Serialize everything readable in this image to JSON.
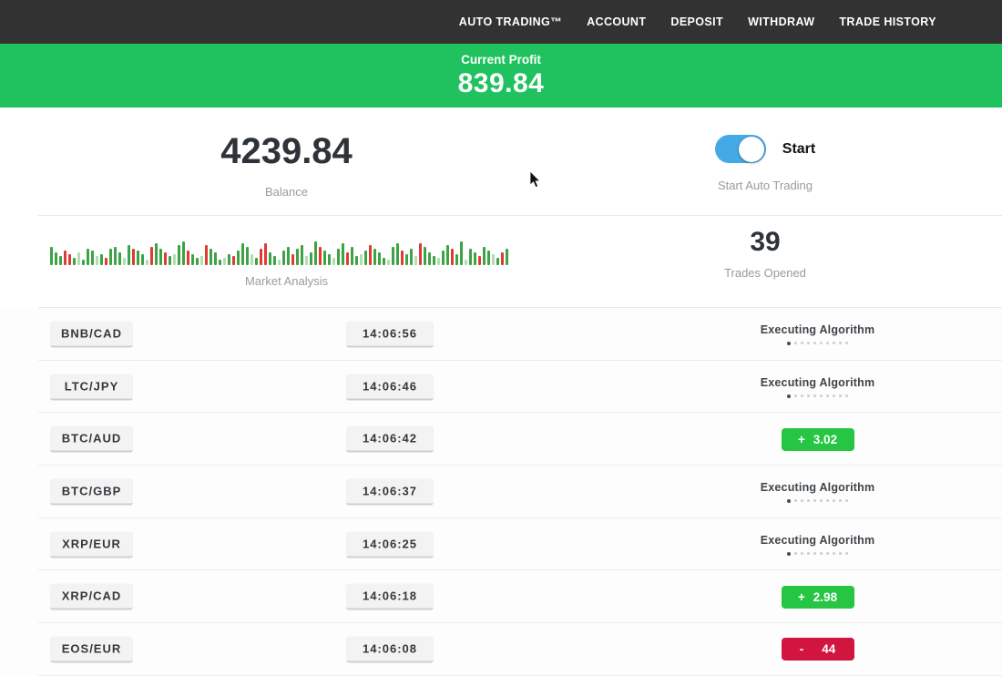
{
  "nav": {
    "items": [
      {
        "label": "AUTO TRADING™"
      },
      {
        "label": "ACCOUNT"
      },
      {
        "label": "DEPOSIT"
      },
      {
        "label": "WITHDRAW"
      },
      {
        "label": "TRADE HISTORY"
      }
    ]
  },
  "banner": {
    "label": "Current Profit",
    "value": "839.84"
  },
  "stats": {
    "balance": {
      "value": "4239.84",
      "label": "Balance"
    },
    "auto_trading": {
      "toggle_state": "on",
      "toggle_label": "Start",
      "label": "Start Auto Trading"
    },
    "market_analysis": {
      "label": "Market Analysis",
      "bars": [
        "g20",
        "g14",
        "g10",
        "r16",
        "r12",
        "g8",
        "G14",
        "g6",
        "g18",
        "g16",
        "G10",
        "g12",
        "r8",
        "g18",
        "g20",
        "g14",
        "G8",
        "g22",
        "r18",
        "g16",
        "g12",
        "G6",
        "r20",
        "g24",
        "g18",
        "r14",
        "g10",
        "G12",
        "g22",
        "g26",
        "r16",
        "g12",
        "g8",
        "G10",
        "r22",
        "g18",
        "g14",
        "g6",
        "G8",
        "g12",
        "r10",
        "g16",
        "g24",
        "g20",
        "G12",
        "g8",
        "r18",
        "r24",
        "g14",
        "g10",
        "G6",
        "g16",
        "g20",
        "r12",
        "g18",
        "g22",
        "G10",
        "g14",
        "g26",
        "r20",
        "g16",
        "g12",
        "G8",
        "g18",
        "g24",
        "r14",
        "g20",
        "g10",
        "G12",
        "g16",
        "r22",
        "g18",
        "g14",
        "g8",
        "G6",
        "g20",
        "g24",
        "r16",
        "g12",
        "g18",
        "G10",
        "r24",
        "g20",
        "g14",
        "g10",
        "G8",
        "g16",
        "g22",
        "r18",
        "g12",
        "g26",
        "G6",
        "g18",
        "g14",
        "r10",
        "g20",
        "g16",
        "G12",
        "g8",
        "r14",
        "g18"
      ]
    },
    "trades_opened": {
      "value": "39",
      "label": "Trades Opened"
    }
  },
  "trades": {
    "executing_label": "Executing Algorithm",
    "rows": [
      {
        "pair": "BNB/CAD",
        "time": "14:06:56",
        "status": {
          "type": "executing"
        }
      },
      {
        "pair": "LTC/JPY",
        "time": "14:06:46",
        "status": {
          "type": "executing"
        }
      },
      {
        "pair": "BTC/AUD",
        "time": "14:06:42",
        "status": {
          "type": "profit",
          "sign": "+",
          "value": "3.02"
        }
      },
      {
        "pair": "BTC/GBP",
        "time": "14:06:37",
        "status": {
          "type": "executing"
        }
      },
      {
        "pair": "XRP/EUR",
        "time": "14:06:25",
        "status": {
          "type": "executing"
        }
      },
      {
        "pair": "XRP/CAD",
        "time": "14:06:18",
        "status": {
          "type": "profit",
          "sign": "+",
          "value": "2.98"
        }
      },
      {
        "pair": "EOS/EUR",
        "time": "14:06:08",
        "status": {
          "type": "loss",
          "sign": "-",
          "value": "44"
        }
      }
    ]
  },
  "colors": {
    "nav_dark": "#323232",
    "banner_green": "#1fc25e",
    "profit_green": "#26c644",
    "loss_red": "#d2153f",
    "toggle_blue": "#45a9e6",
    "chart_green": "#3da344",
    "chart_red": "#df3b35"
  }
}
